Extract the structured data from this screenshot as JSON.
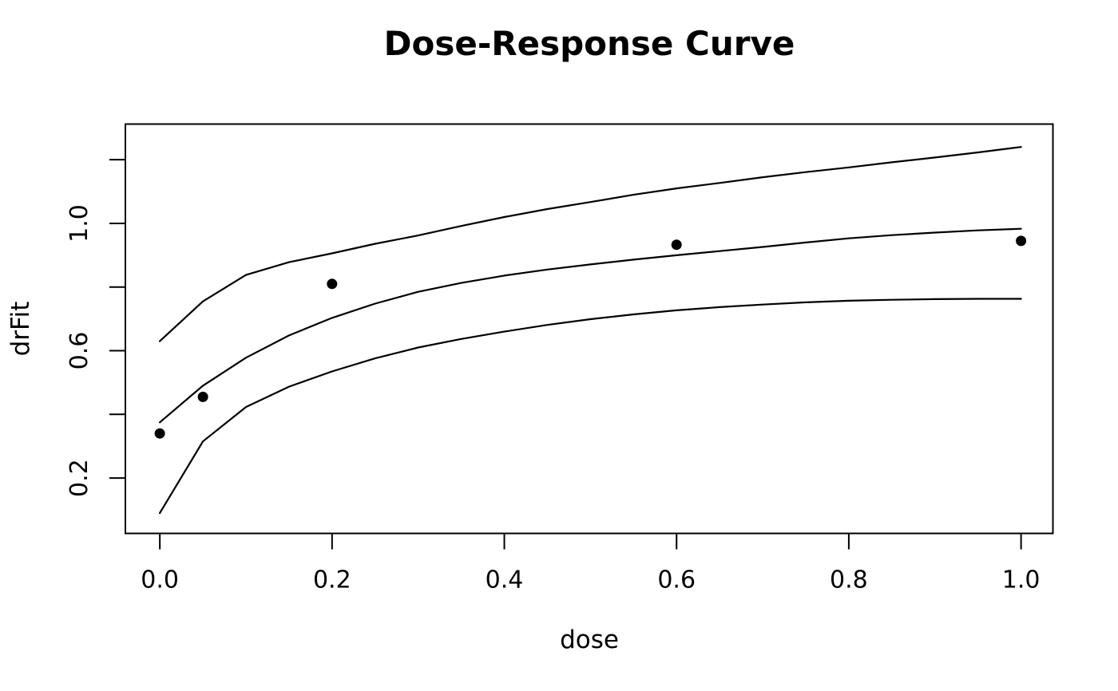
{
  "chart_data": {
    "type": "line",
    "title": "Dose-Response Curve",
    "xlabel": "dose",
    "ylabel": "drFit",
    "xlim": [
      -0.04,
      1.037
    ],
    "ylim": [
      0.026,
      1.312
    ],
    "grid": false,
    "legend": "none",
    "x_ticks": {
      "values": [
        0.0,
        0.2,
        0.4,
        0.6,
        0.8,
        1.0
      ],
      "labels": [
        "0.0",
        "0.2",
        "0.4",
        "0.6",
        "0.8",
        "1.0"
      ]
    },
    "y_ticks": {
      "values": [
        0.2,
        0.4,
        0.6,
        0.8,
        1.0,
        1.2
      ],
      "labels": [
        "0.2",
        "",
        "0.6",
        "",
        "1.0",
        ""
      ]
    },
    "points": {
      "name": "observed-data",
      "marker": "filled-circle",
      "xy": [
        [
          0.0,
          0.34
        ],
        [
          0.05,
          0.455
        ],
        [
          0.2,
          0.81
        ],
        [
          0.6,
          0.933
        ],
        [
          1.0,
          0.945
        ]
      ]
    },
    "series": [
      {
        "name": "upper-confidence-band",
        "xy": [
          [
            0,
            0.63
          ],
          [
            0.05,
            0.755
          ],
          [
            0.1,
            0.838
          ],
          [
            0.15,
            0.878
          ],
          [
            0.2,
            0.906
          ],
          [
            0.25,
            0.936
          ],
          [
            0.3,
            0.962
          ],
          [
            0.35,
            0.992
          ],
          [
            0.4,
            1.02
          ],
          [
            0.45,
            1.045
          ],
          [
            0.5,
            1.067
          ],
          [
            0.55,
            1.09
          ],
          [
            0.6,
            1.11
          ],
          [
            0.65,
            1.127
          ],
          [
            0.7,
            1.145
          ],
          [
            0.75,
            1.161
          ],
          [
            0.8,
            1.176
          ],
          [
            0.85,
            1.192
          ],
          [
            0.9,
            1.207
          ],
          [
            0.95,
            1.223
          ],
          [
            1,
            1.24
          ]
        ]
      },
      {
        "name": "fitted-model",
        "xy": [
          [
            0,
            0.375
          ],
          [
            0.05,
            0.49
          ],
          [
            0.1,
            0.578
          ],
          [
            0.15,
            0.648
          ],
          [
            0.2,
            0.703
          ],
          [
            0.25,
            0.748
          ],
          [
            0.3,
            0.785
          ],
          [
            0.35,
            0.813
          ],
          [
            0.4,
            0.836
          ],
          [
            0.45,
            0.855
          ],
          [
            0.5,
            0.871
          ],
          [
            0.55,
            0.886
          ],
          [
            0.6,
            0.9
          ],
          [
            0.65,
            0.913
          ],
          [
            0.7,
            0.926
          ],
          [
            0.75,
            0.94
          ],
          [
            0.8,
            0.953
          ],
          [
            0.85,
            0.963
          ],
          [
            0.9,
            0.971
          ],
          [
            0.95,
            0.978
          ],
          [
            1,
            0.983
          ]
        ]
      },
      {
        "name": "lower-confidence-band",
        "xy": [
          [
            0,
            0.09
          ],
          [
            0.05,
            0.315
          ],
          [
            0.1,
            0.423
          ],
          [
            0.15,
            0.487
          ],
          [
            0.2,
            0.535
          ],
          [
            0.25,
            0.576
          ],
          [
            0.3,
            0.61
          ],
          [
            0.35,
            0.637
          ],
          [
            0.4,
            0.66
          ],
          [
            0.45,
            0.681
          ],
          [
            0.5,
            0.699
          ],
          [
            0.55,
            0.714
          ],
          [
            0.6,
            0.727
          ],
          [
            0.65,
            0.737
          ],
          [
            0.7,
            0.745
          ],
          [
            0.75,
            0.752
          ],
          [
            0.8,
            0.757
          ],
          [
            0.85,
            0.76
          ],
          [
            0.9,
            0.762
          ],
          [
            0.95,
            0.763
          ],
          [
            1,
            0.763
          ]
        ]
      }
    ],
    "colors": {
      "line": "#000000",
      "point": "#000000",
      "text": "#000000",
      "background": "#ffffff"
    }
  }
}
